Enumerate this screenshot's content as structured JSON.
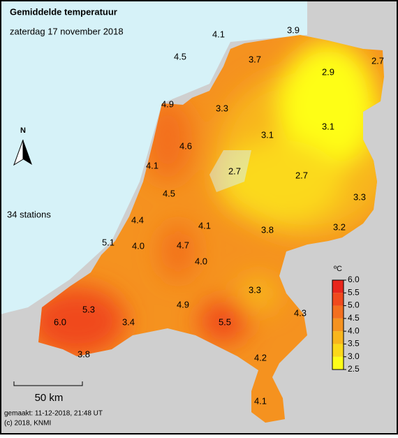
{
  "header": {
    "title": "Gemiddelde temperatuur",
    "subtitle": "zaterdag 17 november 2018"
  },
  "stations_count": "34 stations",
  "north": "N",
  "scale_bar": "50 km",
  "footer": {
    "made": "gemaakt: 11-12-2018, 21:48 UT",
    "copyright": "(c) 2018, KNMI"
  },
  "legend": {
    "unit": "ºC",
    "ticks": [
      "6.0",
      "5.5",
      "5.0",
      "4.5",
      "4.0",
      "3.5",
      "3.0",
      "2.5"
    ],
    "colors": [
      "#e8261c",
      "#f04a1e",
      "#f36f1f",
      "#f5921f",
      "#f8b61c",
      "#fbd91a",
      "#fefe18"
    ]
  },
  "stations": [
    "4.1",
    "3.9",
    "4.5",
    "3.7",
    "2.9",
    "2.7",
    "4.9",
    "3.3",
    "3.1",
    "3.1",
    "4.6",
    "4.1",
    "2.7",
    "2.7",
    "4.5",
    "3.3",
    "4.4",
    "4.1",
    "3.8",
    "3.2",
    "5.1",
    "4.0",
    "4.7",
    "4.0",
    "3.3",
    "5.3",
    "4.9",
    "4.3",
    "6.0",
    "3.4",
    "5.5",
    "3.8",
    "4.2",
    "4.1"
  ]
}
